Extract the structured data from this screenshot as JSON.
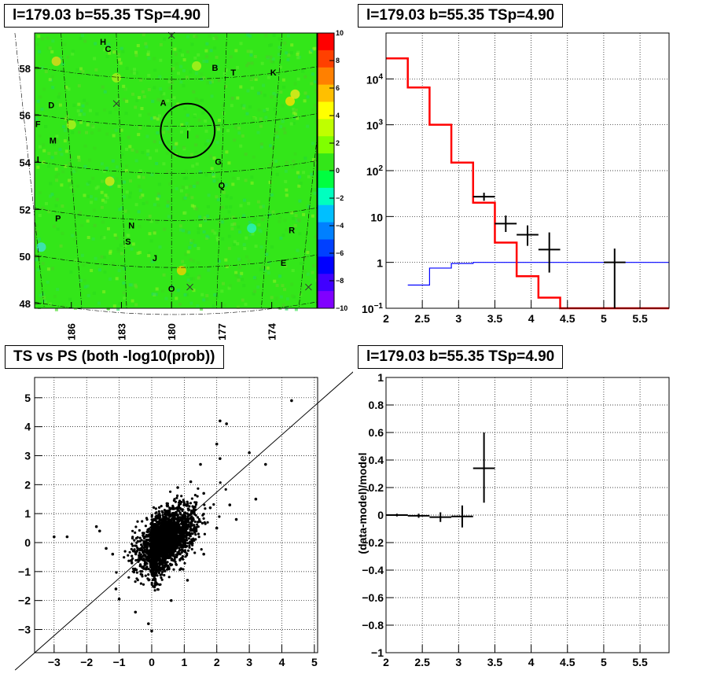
{
  "titles": {
    "map": "l=179.03 b=55.35 TSp=4.90",
    "spectrum": "l=179.03 b=55.35 TSp=4.90",
    "scatter": "TS vs PS (both -log10(prob))",
    "residual": "l=179.03 b=55.35 TSp=4.90"
  },
  "colors": {
    "model_line": "#ff0000",
    "background_line": "#0000ff",
    "data_marker": "#000000",
    "map_background": "#33e619"
  },
  "chart_data": [
    {
      "type": "heatmap",
      "ylim": [
        47.8,
        59.5
      ],
      "xlim_reversed": [
        188.2,
        171.3
      ],
      "x_tick_labels": [
        "186",
        "183",
        "180",
        "177",
        "174"
      ],
      "y_tick_labels": [
        "48",
        "50",
        "52",
        "54",
        "56",
        "58"
      ],
      "colorbar": {
        "range": [
          -10,
          10
        ],
        "tick_labels": [
          "10",
          "8",
          "6",
          "4",
          "2",
          "0",
          "-2",
          "-4",
          "-6",
          "-8",
          "-10"
        ],
        "colors": [
          "#ff0000",
          "#ff4000",
          "#ff8000",
          "#ffbf00",
          "#ffff00",
          "#bfff00",
          "#80ff00",
          "#33e619",
          "#00ff40",
          "#00ffbf",
          "#00bfff",
          "#0080ff",
          "#0040ff",
          "#0000ff",
          "#4000ff",
          "#8000ff"
        ]
      },
      "source_labels": [
        {
          "label": "H",
          "l": 184.1,
          "b": 59.0
        },
        {
          "label": "C",
          "l": 183.8,
          "b": 58.7
        },
        {
          "label": "B",
          "l": 177.4,
          "b": 57.9
        },
        {
          "label": "T",
          "l": 176.3,
          "b": 57.7
        },
        {
          "label": "K",
          "l": 173.9,
          "b": 57.7
        },
        {
          "label": "A",
          "l": 180.5,
          "b": 56.4
        },
        {
          "label": "D",
          "l": 187.2,
          "b": 56.3
        },
        {
          "label": "F",
          "l": 188.0,
          "b": 55.5
        },
        {
          "label": "M",
          "l": 187.1,
          "b": 54.8
        },
        {
          "label": "I",
          "l": 188.0,
          "b": 54.0
        },
        {
          "label": "G",
          "l": 177.2,
          "b": 53.9
        },
        {
          "label": "Q",
          "l": 177.0,
          "b": 52.9
        },
        {
          "label": "P",
          "l": 186.8,
          "b": 51.5
        },
        {
          "label": "N",
          "l": 182.4,
          "b": 51.2
        },
        {
          "label": "R",
          "l": 172.8,
          "b": 51.0
        },
        {
          "label": "S",
          "l": 182.6,
          "b": 50.5
        },
        {
          "label": "J",
          "l": 181.0,
          "b": 49.8
        },
        {
          "label": "E",
          "l": 173.3,
          "b": 49.6
        },
        {
          "label": "O",
          "l": 180.0,
          "b": 48.5
        }
      ],
      "x_markers": [
        {
          "l": 180.0,
          "b": 59.4
        },
        {
          "l": 183.3,
          "b": 56.5
        },
        {
          "l": 178.9,
          "b": 48.7
        },
        {
          "l": 171.8,
          "b": 48.7
        }
      ],
      "circle": {
        "l": 179.03,
        "b": 55.35,
        "r_deg": 0.5
      }
    },
    {
      "type": "line",
      "x_scale": "linear",
      "y_scale": "log",
      "xlim": [
        2,
        5.9
      ],
      "ylim": [
        0.1,
        100000
      ],
      "x_tick_labels": [
        "2",
        "2.5",
        "3",
        "3.5",
        "4",
        "4.5",
        "5",
        "5.5"
      ],
      "y_tick_labels": [
        "10^4",
        "10^3",
        "10^2",
        "10",
        "1",
        "10^-1"
      ],
      "series": [
        {
          "bin_edges": [
            2.0,
            2.3,
            2.6,
            2.9,
            3.2,
            3.5,
            3.8,
            4.1,
            4.4,
            5.9
          ],
          "values": [
            28000,
            6500,
            1000,
            150,
            20,
            2.7,
            0.5,
            0.17,
            0.1
          ]
        },
        {
          "bin_edges": [
            2.3,
            2.6,
            2.9,
            3.2,
            5.9
          ],
          "values": [
            0.32,
            0.75,
            0.95,
            1.0
          ]
        },
        {
          "points": [
            {
              "x": 3.35,
              "y": 27,
              "xerr": 0.15,
              "ylo": 22,
              "yhi": 33
            },
            {
              "x": 3.65,
              "y": 7,
              "xerr": 0.15,
              "ylo": 4.6,
              "yhi": 10.5
            },
            {
              "x": 3.95,
              "y": 4,
              "xerr": 0.15,
              "ylo": 2.3,
              "yhi": 6.4
            },
            {
              "x": 4.25,
              "y": 1.9,
              "xerr": 0.15,
              "ylo": 0.6,
              "yhi": 4.5
            },
            {
              "x": 5.15,
              "y": 1.0,
              "xerr": 0.15,
              "ylo": 0.1,
              "yhi": 2.0
            }
          ]
        }
      ]
    },
    {
      "type": "scatter",
      "xlim": [
        -3.6,
        5.1
      ],
      "ylim": [
        -3.8,
        5.7
      ],
      "x_tick_labels": [
        "-3",
        "-2",
        "-1",
        "0",
        "1",
        "2",
        "3",
        "4",
        "5"
      ],
      "y_tick_labels": [
        "-3",
        "-2",
        "-1",
        "0",
        "1",
        "2",
        "3",
        "4",
        "5"
      ],
      "diagonal": {
        "from": [
          -4.2,
          -4.4
        ],
        "to": [
          6.3,
          6.0
        ]
      },
      "points": [
        [
          4.3,
          4.9
        ],
        [
          3.5,
          2.7
        ],
        [
          3.2,
          1.5
        ],
        [
          3.0,
          3.1
        ],
        [
          2.3,
          4.1
        ],
        [
          2.1,
          4.2
        ],
        [
          2.0,
          3.4
        ],
        [
          2.1,
          2.9
        ],
        [
          1.5,
          2.7
        ],
        [
          1.6,
          1.7
        ],
        [
          2.4,
          1.3
        ],
        [
          -3.0,
          0.2
        ],
        [
          -2.6,
          0.2
        ],
        [
          -1.7,
          0.55
        ],
        [
          -1.0,
          -1.95
        ],
        [
          -1.1,
          -1.6
        ],
        [
          0.0,
          -3.05
        ],
        [
          -0.1,
          -2.8
        ],
        [
          -0.5,
          -2.4
        ],
        [
          0.6,
          -2.0
        ],
        [
          1.1,
          -1.3
        ],
        [
          1.6,
          -0.4
        ],
        [
          -1.2,
          -0.4
        ],
        [
          -1.6,
          0.4
        ],
        [
          2.0,
          0.5
        ],
        [
          1.8,
          1.2
        ],
        [
          2.6,
          0.8
        ],
        [
          1.2,
          2.1
        ],
        [
          0.8,
          1.9
        ],
        [
          -1.4,
          -0.2
        ],
        [
          0.9,
          -0.9
        ],
        [
          1.3,
          0.6
        ]
      ],
      "cloud": {
        "count": 2600,
        "x_mean": 0.35,
        "x_sd": 0.45,
        "y_mean": 0.05,
        "y_sd": 0.55,
        "corr": 0.55,
        "xlim": [
          -2.1,
          2.7
        ],
        "ylim": [
          -2.35,
          3.0
        ]
      }
    },
    {
      "type": "scatter",
      "xlim": [
        2,
        5.9
      ],
      "ylim": [
        -1,
        1
      ],
      "ylabel": "(data-model)/model",
      "x_tick_labels": [
        "2",
        "2.5",
        "3",
        "3.5",
        "4",
        "4.5",
        "5",
        "5.5"
      ],
      "y_tick_labels": [
        "1",
        "0.8",
        "0.6",
        "0.4",
        "0.2",
        "0",
        "-0.2",
        "-0.4",
        "-0.6",
        "-0.8",
        "-1"
      ],
      "points": [
        {
          "x": 2.15,
          "y": 0.0,
          "xerr": 0.15,
          "ylo": -0.01,
          "yhi": 0.01
        },
        {
          "x": 2.45,
          "y": -0.005,
          "xerr": 0.15,
          "ylo": -0.02,
          "yhi": 0.01
        },
        {
          "x": 2.75,
          "y": -0.015,
          "xerr": 0.15,
          "ylo": -0.05,
          "yhi": 0.02
        },
        {
          "x": 3.05,
          "y": -0.01,
          "xerr": 0.15,
          "ylo": -0.09,
          "yhi": 0.07
        },
        {
          "x": 3.35,
          "y": 0.34,
          "xerr": 0.15,
          "ylo": 0.09,
          "yhi": 0.6
        }
      ]
    }
  ]
}
